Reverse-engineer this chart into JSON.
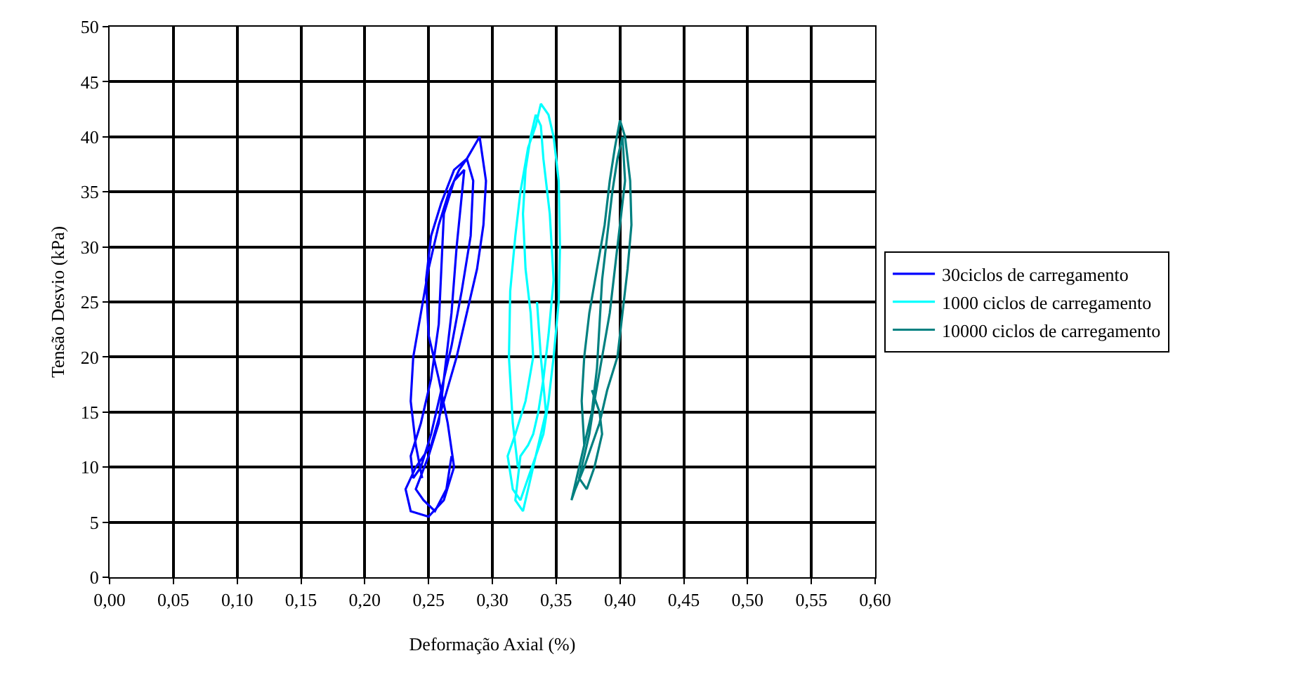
{
  "chart_data": {
    "type": "line",
    "xlabel": "Deformação Axial (%)",
    "ylabel": "Tensão Desvio (kPa)",
    "xlim": [
      0,
      0.6
    ],
    "ylim": [
      0,
      50
    ],
    "xticks": [
      {
        "value": 0,
        "label": "0,00"
      },
      {
        "value": 0.05,
        "label": "0,05"
      },
      {
        "value": 0.1,
        "label": "0,10"
      },
      {
        "value": 0.15,
        "label": "0,15"
      },
      {
        "value": 0.2,
        "label": "0,20"
      },
      {
        "value": 0.25,
        "label": "0,25"
      },
      {
        "value": 0.3,
        "label": "0,30"
      },
      {
        "value": 0.35,
        "label": "0,35"
      },
      {
        "value": 0.4,
        "label": "0,40"
      },
      {
        "value": 0.45,
        "label": "0,45"
      },
      {
        "value": 0.5,
        "label": "0,50"
      },
      {
        "value": 0.55,
        "label": "0,55"
      },
      {
        "value": 0.6,
        "label": "0,60"
      }
    ],
    "yticks": [
      0,
      5,
      10,
      15,
      20,
      25,
      30,
      35,
      40,
      45,
      50
    ],
    "grid": true,
    "legend": "right",
    "marker": "none",
    "line_style": "solid",
    "series": [
      {
        "name": "30ciclos de carregamento",
        "color": "#0000ff",
        "x": [
          0.245,
          0.24,
          0.236,
          0.238,
          0.244,
          0.25,
          0.258,
          0.266,
          0.274,
          0.28,
          0.29,
          0.295,
          0.293,
          0.288,
          0.28,
          0.272,
          0.262,
          0.252,
          0.24,
          0.232,
          0.236,
          0.25,
          0.262,
          0.27,
          0.265,
          0.258,
          0.25,
          0.248,
          0.252,
          0.26,
          0.27,
          0.28,
          0.285,
          0.283,
          0.276,
          0.268,
          0.26,
          0.252,
          0.244,
          0.238,
          0.236,
          0.244,
          0.252,
          0.258,
          0.26,
          0.262,
          0.27,
          0.278,
          0.272,
          0.268,
          0.262,
          0.258,
          0.25,
          0.24,
          0.246,
          0.255,
          0.264,
          0.268
        ],
        "values": [
          9,
          12,
          16,
          20,
          24,
          28,
          32,
          35,
          37,
          38,
          40,
          36,
          32,
          28,
          24,
          20,
          16,
          12,
          10,
          8,
          6,
          5.5,
          7,
          10,
          14,
          18,
          22,
          27,
          31,
          34,
          37,
          38,
          36,
          31,
          26,
          21,
          17,
          13,
          10,
          9,
          11,
          14,
          18,
          23,
          28,
          33,
          36,
          37,
          30,
          24,
          18,
          14,
          11,
          8,
          7,
          6,
          8,
          11
        ]
      },
      {
        "name": "1000 ciclos de carregamento",
        "color": "#00ffff",
        "x": [
          0.32,
          0.316,
          0.313,
          0.314,
          0.318,
          0.322,
          0.328,
          0.334,
          0.338,
          0.344,
          0.348,
          0.352,
          0.353,
          0.352,
          0.348,
          0.344,
          0.34,
          0.334,
          0.328,
          0.322,
          0.316,
          0.312,
          0.318,
          0.326,
          0.332,
          0.33,
          0.326,
          0.324,
          0.326,
          0.33,
          0.334,
          0.338,
          0.34,
          0.345,
          0.348,
          0.344,
          0.34,
          0.336,
          0.332,
          0.328,
          0.322,
          0.318,
          0.324,
          0.33,
          0.336,
          0.342,
          0.338,
          0.335
        ],
        "values": [
          10,
          14,
          20,
          26,
          31,
          35,
          39,
          41,
          43,
          42,
          40,
          36,
          30,
          25,
          20,
          16,
          13,
          11,
          9,
          7,
          8,
          11,
          13,
          16,
          20,
          24,
          28,
          33,
          37,
          40,
          42,
          41,
          38,
          33,
          27,
          22,
          18,
          15,
          13,
          12,
          11,
          7,
          6,
          9,
          12,
          15,
          20,
          25
        ]
      },
      {
        "name": "10000 ciclos de carregamento",
        "color": "#008080",
        "x": [
          0.372,
          0.37,
          0.372,
          0.376,
          0.382,
          0.388,
          0.392,
          0.396,
          0.4,
          0.404,
          0.408,
          0.409,
          0.406,
          0.402,
          0.398,
          0.39,
          0.384,
          0.378,
          0.372,
          0.365,
          0.362,
          0.366,
          0.372,
          0.378,
          0.382,
          0.384,
          0.386,
          0.39,
          0.394,
          0.398,
          0.402,
          0.404,
          0.4,
          0.396,
          0.392,
          0.386,
          0.38,
          0.376,
          0.372,
          0.368,
          0.374,
          0.38,
          0.386,
          0.384,
          0.378
        ],
        "values": [
          12,
          16,
          20,
          24,
          28,
          32,
          36,
          39,
          41.5,
          40,
          36,
          32,
          28,
          24,
          20,
          17,
          14,
          12,
          10,
          8,
          7,
          9,
          12,
          15,
          19,
          23,
          27,
          31,
          35,
          38,
          40,
          36,
          32,
          28,
          24,
          20,
          16,
          13,
          11,
          9,
          8,
          10,
          13,
          15,
          17
        ]
      }
    ]
  }
}
